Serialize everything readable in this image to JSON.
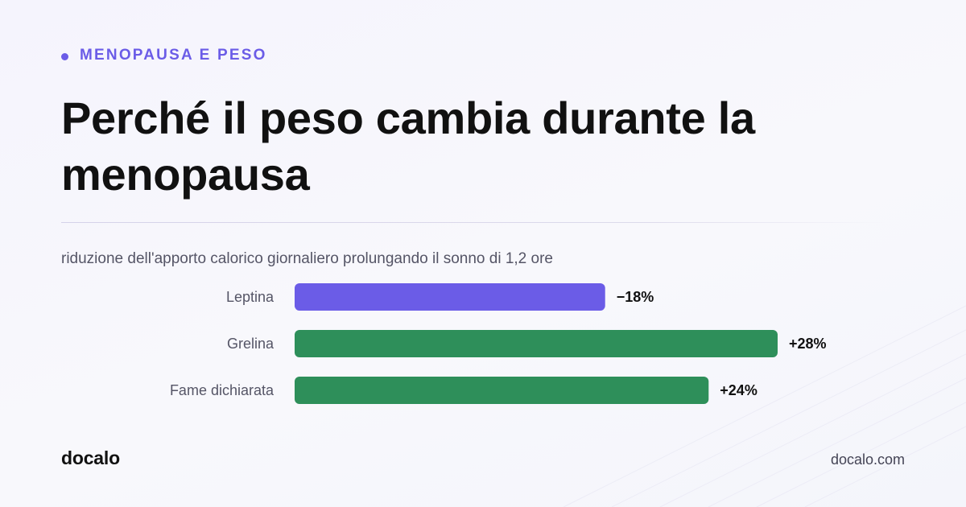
{
  "kicker": "MENOPAUSA E PESO",
  "title": "Perché il peso cambia durante la menopausa",
  "footer": {
    "brand": "docalo",
    "site": "docalo.com"
  },
  "colors": {
    "accent": "#6b5ce7",
    "negative_bar": "#6b5ce7",
    "positive_bar": "#2e8f5a"
  },
  "chart_data": {
    "type": "bar",
    "orientation": "horizontal",
    "title": "riduzione dell'apporto calorico giornaliero prolungando il sonno di 1,2 ore",
    "categories": [
      "Leptina",
      "Grelina",
      "Fame dichiarata"
    ],
    "values": [
      -18,
      28,
      24
    ],
    "value_labels": [
      "−18%",
      "+28%",
      "+24%"
    ],
    "bar_colors": [
      "#6b5ce7",
      "#2e8f5a",
      "#2e8f5a"
    ],
    "unit": "%",
    "xlim": [
      0,
      28
    ],
    "grid": false,
    "legend": "none"
  }
}
